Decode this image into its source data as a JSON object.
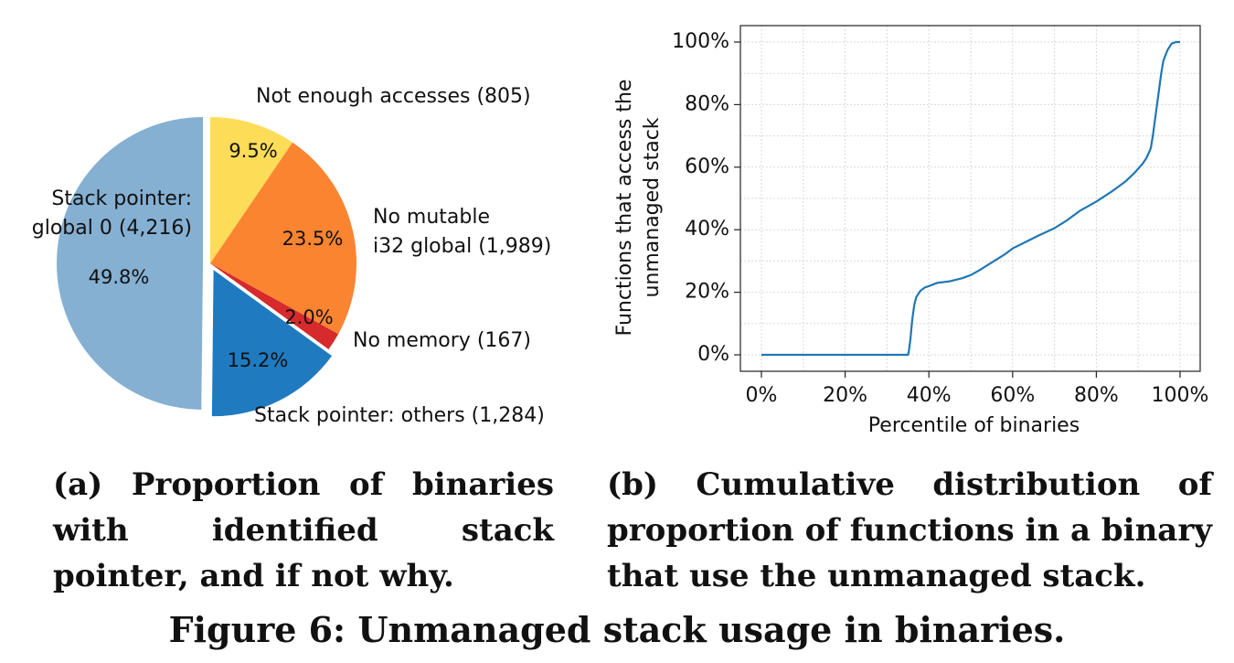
{
  "figure_title": "Figure 6: Unmanaged stack usage in binaries.",
  "chart_data": [
    {
      "type": "pie",
      "caption": "(a) Proportion of binaries with identified stack pointer, and if not why.",
      "slices": [
        {
          "label_lines": [
            "Not enough accesses (805)"
          ],
          "value": 805,
          "percent": "9.5%",
          "color": "#fddc57",
          "exploded": false
        },
        {
          "label_lines": [
            "No mutable",
            "i32 global (1,989)"
          ],
          "value": 1989,
          "percent": "23.5%",
          "color": "#fb8431",
          "exploded": false
        },
        {
          "label_lines": [
            "No memory (167)"
          ],
          "value": 167,
          "percent": "2.0%",
          "color": "#d62a2c",
          "exploded": false
        },
        {
          "label_lines": [
            "Stack pointer: others (1,284)"
          ],
          "value": 1284,
          "percent": "15.2%",
          "color": "#1f7ac0",
          "exploded": true
        },
        {
          "label_lines": [
            "Stack pointer:",
            "global 0 (4,216)"
          ],
          "value": 4216,
          "percent": "49.8%",
          "color": "#85b0d2",
          "exploded": true
        }
      ]
    },
    {
      "type": "line",
      "caption": "(b) Cumulative distribution of proportion of functions in a binary that use the unmanaged stack.",
      "xlabel": "Percentile of binaries",
      "ylabel_lines": [
        "Functions that access the",
        "unmanaged stack"
      ],
      "xlim": [
        0,
        100
      ],
      "ylim": [
        0,
        100
      ],
      "xticks": [
        0,
        20,
        40,
        60,
        80,
        100
      ],
      "xtick_labels": [
        "0%",
        "20%",
        "40%",
        "60%",
        "80%",
        "100%"
      ],
      "yticks": [
        0,
        20,
        40,
        60,
        80,
        100
      ],
      "ytick_labels": [
        "0%",
        "20%",
        "40%",
        "60%",
        "80%",
        "100%"
      ],
      "grid": true,
      "series": [
        {
          "color": "#1f77b4",
          "x": [
            0,
            10,
            20,
            30,
            35,
            35.2,
            35.6,
            36,
            36.5,
            37,
            38,
            39,
            40,
            42,
            45,
            48,
            50,
            52,
            55,
            58,
            60,
            63,
            66,
            70,
            73,
            76,
            80,
            84,
            87,
            89,
            90,
            91,
            92,
            93,
            93.5,
            94,
            94.5,
            95,
            95.5,
            96,
            97,
            98,
            99,
            100
          ],
          "y": [
            0,
            0,
            0,
            0,
            0,
            1,
            5,
            11,
            16,
            18.5,
            20.5,
            21.5,
            22,
            23,
            23.5,
            24.5,
            25.5,
            27,
            29.5,
            32,
            34,
            36,
            38,
            40.5,
            43,
            46,
            49,
            52.5,
            55.5,
            58,
            59.5,
            61,
            63,
            66,
            70,
            75,
            80,
            85,
            90,
            94,
            97.5,
            99.5,
            100,
            100
          ]
        }
      ]
    }
  ]
}
